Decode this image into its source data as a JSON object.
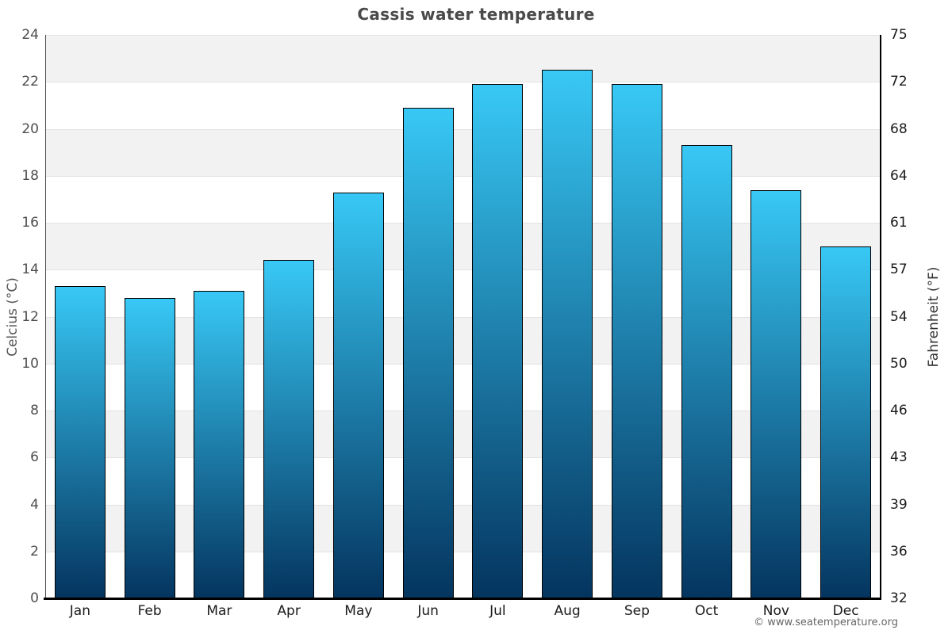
{
  "title": "Cassis water temperature",
  "copyright": "© www.seatemperature.org",
  "chart_data": {
    "type": "bar",
    "title": "Cassis water temperature",
    "categories": [
      "Jan",
      "Feb",
      "Mar",
      "Apr",
      "May",
      "Jun",
      "Jul",
      "Aug",
      "Sep",
      "Oct",
      "Nov",
      "Dec"
    ],
    "values": [
      13.3,
      12.8,
      13.1,
      14.4,
      17.3,
      20.9,
      21.9,
      22.5,
      21.9,
      19.3,
      17.4,
      15.0
    ],
    "series_name": "Water temperature",
    "xlabel": "",
    "ylabel_left": "Celcius (°C)",
    "ylabel_right": "Fahrenheit (°F)",
    "ylim_celsius": [
      0,
      24
    ],
    "yticks_celsius": [
      24,
      22,
      20,
      18,
      16,
      14,
      12,
      10,
      8,
      6,
      4,
      2,
      0
    ],
    "yticks_fahrenheit": [
      75,
      72,
      68,
      64,
      61,
      57,
      54,
      50,
      46,
      43,
      39,
      36,
      32
    ],
    "grid": true,
    "legend_position": "none",
    "colors": {
      "bar_gradient_top": "#38c8f5",
      "bar_gradient_bottom": "#04355f",
      "bar_border": "#000000",
      "band_gray": "#f2f2f2",
      "band_white": "#ffffff",
      "gridline": "#e2e2e2",
      "title_text": "#4a4a4a",
      "tick_text": "#4d4d4d"
    }
  }
}
